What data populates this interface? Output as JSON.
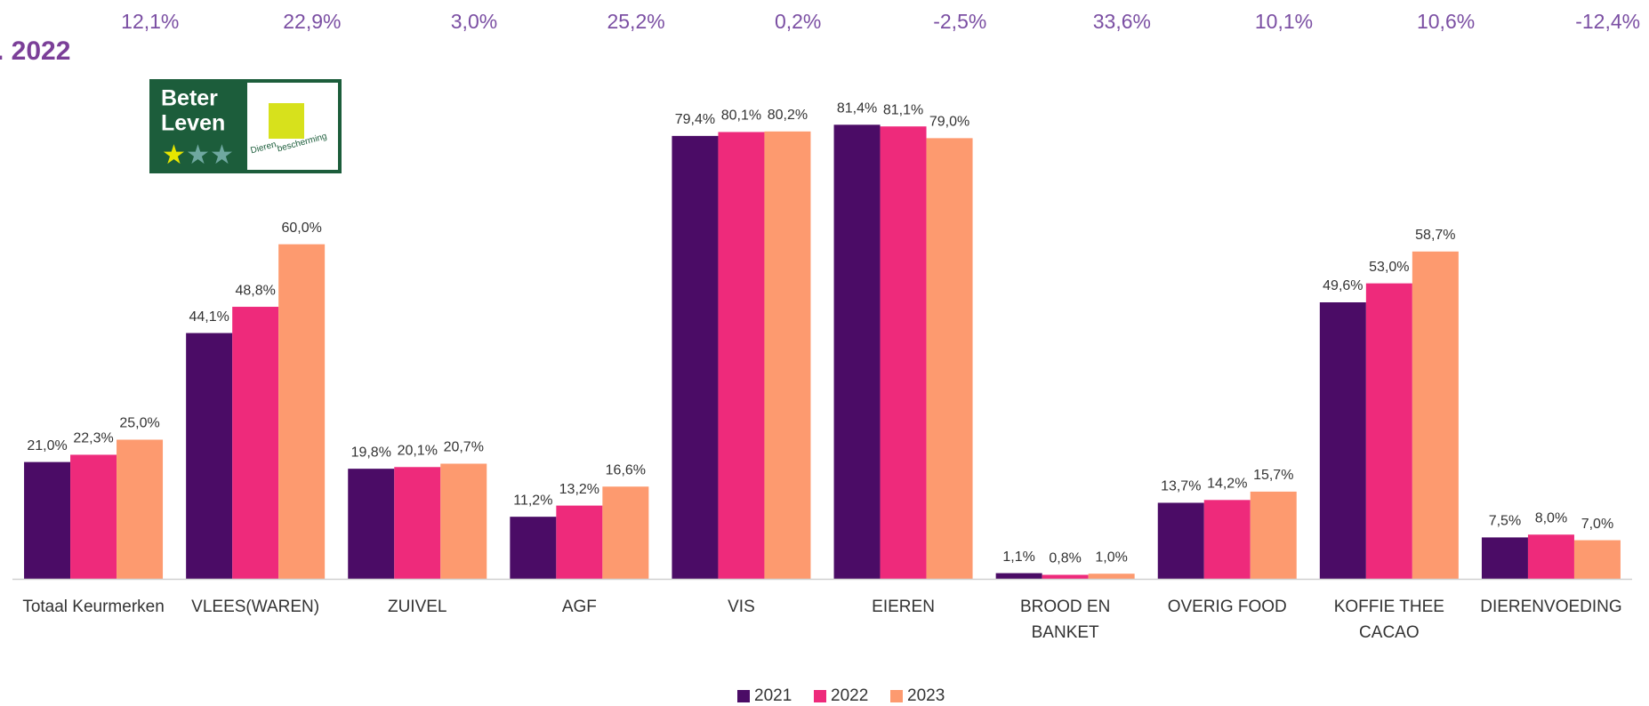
{
  "chart_data": {
    "type": "bar",
    "title": ". 2022",
    "annotations": [
      "12,1%",
      "22,9%",
      "3,0%",
      "25,2%",
      "0,2%",
      "-2,5%",
      "33,6%",
      "10,1%",
      "10,6%",
      "-12,4%"
    ],
    "logo": {
      "line1": "Beter",
      "line2": "Leven",
      "sub1": "Dieren",
      "sub2": "bescherming"
    },
    "categories": [
      "Totaal Keurmerken",
      "VLEES(WAREN)",
      "ZUIVEL",
      "AGF",
      "VIS",
      "EIEREN",
      "BROOD EN BANKET",
      "OVERIG FOOD",
      "KOFFIE THEE CACAO",
      "DIERENVOEDING"
    ],
    "series": [
      {
        "name": "2021",
        "color": "#4b0c66",
        "values": [
          21.0,
          44.1,
          19.8,
          11.2,
          79.4,
          81.4,
          1.1,
          13.7,
          49.6,
          7.5
        ],
        "value_labels": [
          "21,0%",
          "44,1%",
          "19,8%",
          "11,2%",
          "79,4%",
          "81,4%",
          "1,1%",
          "13,7%",
          "49,6%",
          "7,5%"
        ]
      },
      {
        "name": "2022",
        "color": "#ee2a7b",
        "values": [
          22.3,
          48.8,
          20.1,
          13.2,
          80.1,
          81.1,
          0.8,
          14.2,
          53.0,
          8.0
        ],
        "value_labels": [
          "22,3%",
          "48,8%",
          "20,1%",
          "13,2%",
          "80,1%",
          "81,1%",
          "0,8%",
          "14,2%",
          "53,0%",
          "8,0%"
        ]
      },
      {
        "name": "2023",
        "color": "#fd9a6f",
        "values": [
          25.0,
          60.0,
          20.7,
          16.6,
          80.2,
          79.0,
          1.0,
          15.7,
          58.7,
          7.0
        ],
        "value_labels": [
          "25,0%",
          "60,0%",
          "20,7%",
          "16,6%",
          "80,2%",
          "79,0%",
          "1,0%",
          "15,7%",
          "58,7%",
          "7,0%"
        ]
      }
    ],
    "ylim": [
      0,
      100
    ],
    "grid": false,
    "legend": "bottom"
  }
}
